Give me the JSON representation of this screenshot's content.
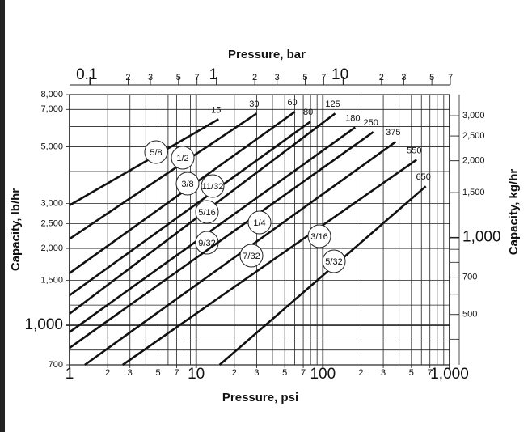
{
  "chart_data": {
    "type": "line",
    "title": "Pressure, bar",
    "xlabel": "Pressure, psi",
    "ylabel": "Capacity, lb/hr",
    "y2label": "Capacity, kg/hr",
    "log_x": true,
    "log_y": true,
    "grid": true,
    "xlim": [
      1,
      1000
    ],
    "xticks": [
      1,
      2,
      3,
      5,
      7,
      10,
      {
        "value": 20,
        "label": "2"
      },
      {
        "value": 30,
        "label": "3"
      },
      {
        "value": 50,
        "label": "5"
      },
      {
        "value": 70,
        "label": "7"
      },
      100,
      {
        "value": 200,
        "label": "2"
      },
      {
        "value": 300,
        "label": "3"
      },
      {
        "value": 500,
        "label": "5"
      },
      {
        "value": 700,
        "label": "7"
      },
      {
        "value": 1000,
        "label": "1,000"
      }
    ],
    "xgrid_minor": [
      4,
      6,
      8,
      9,
      40,
      60,
      80,
      90,
      400,
      600,
      800,
      900
    ],
    "x2lim": [
      0.06895,
      68.95
    ],
    "x2ticks": [
      0.1,
      {
        "value": 0.2,
        "label": "2"
      },
      {
        "value": 0.3,
        "label": "3"
      },
      {
        "value": 0.5,
        "label": "5"
      },
      {
        "value": 0.7,
        "label": "7"
      },
      1,
      2,
      3,
      5,
      7,
      10,
      {
        "value": 20,
        "label": "2"
      },
      {
        "value": 30,
        "label": "3"
      },
      {
        "value": 50,
        "label": "5"
      },
      {
        "value": 70,
        "label": "7"
      }
    ],
    "ylim": [
      700,
      8000
    ],
    "yticks": [
      700,
      {
        "value": 1000,
        "label": "1,000"
      },
      {
        "value": 1500,
        "label": "1,500"
      },
      {
        "value": 2000,
        "label": "2,000"
      },
      {
        "value": 2500,
        "label": "2,500"
      },
      {
        "value": 3000,
        "label": "3,000"
      },
      {
        "value": 5000,
        "label": "5,000"
      },
      {
        "value": 7000,
        "label": "7,000"
      },
      {
        "value": 8000,
        "label": "8,000"
      }
    ],
    "ygrid_minor": [
      800,
      900,
      1200,
      4000,
      6000
    ],
    "y2lim": [
      317.5,
      3628.8
    ],
    "y2ticks": [
      500,
      700,
      {
        "value": 1000,
        "label": "1,000"
      },
      {
        "value": 1500,
        "label": "1,500"
      },
      {
        "value": 2000,
        "label": "2,000"
      },
      {
        "value": 2500,
        "label": "2,500"
      },
      {
        "value": 3000,
        "label": "3,000"
      }
    ],
    "y2grid_minor": [
      400,
      600,
      800,
      900
    ],
    "color": "#111111",
    "series": [
      {
        "name": "5/8",
        "x": [
          1,
          15
        ],
        "values": [
          2950,
          6410
        ]
      },
      {
        "name": "1/2",
        "x": [
          1,
          30
        ],
        "values": [
          2180,
          6750
        ]
      },
      {
        "name": "3/8",
        "x": [
          1,
          60
        ],
        "values": [
          1600,
          6850
        ]
      },
      {
        "name": "11/32",
        "x": [
          1,
          80
        ],
        "values": [
          1310,
          6280
        ]
      },
      {
        "name": "5/16",
        "x": [
          1,
          125
        ],
        "values": [
          1110,
          6750
        ]
      },
      {
        "name": "9/32",
        "x": [
          1,
          180
        ],
        "values": [
          940,
          5960
        ]
      },
      {
        "name": "1/4",
        "x": [
          1,
          250
        ],
        "values": [
          815,
          5710
        ]
      },
      {
        "name": "7/32",
        "x": [
          1.32,
          375
        ],
        "values": [
          700,
          5230
        ]
      },
      {
        "name": "3/16",
        "x": [
          2.63,
          550
        ],
        "values": [
          700,
          4450
        ]
      },
      {
        "name": "5/32",
        "x": [
          15.3,
          650
        ],
        "values": [
          700,
          3500
        ]
      }
    ]
  }
}
